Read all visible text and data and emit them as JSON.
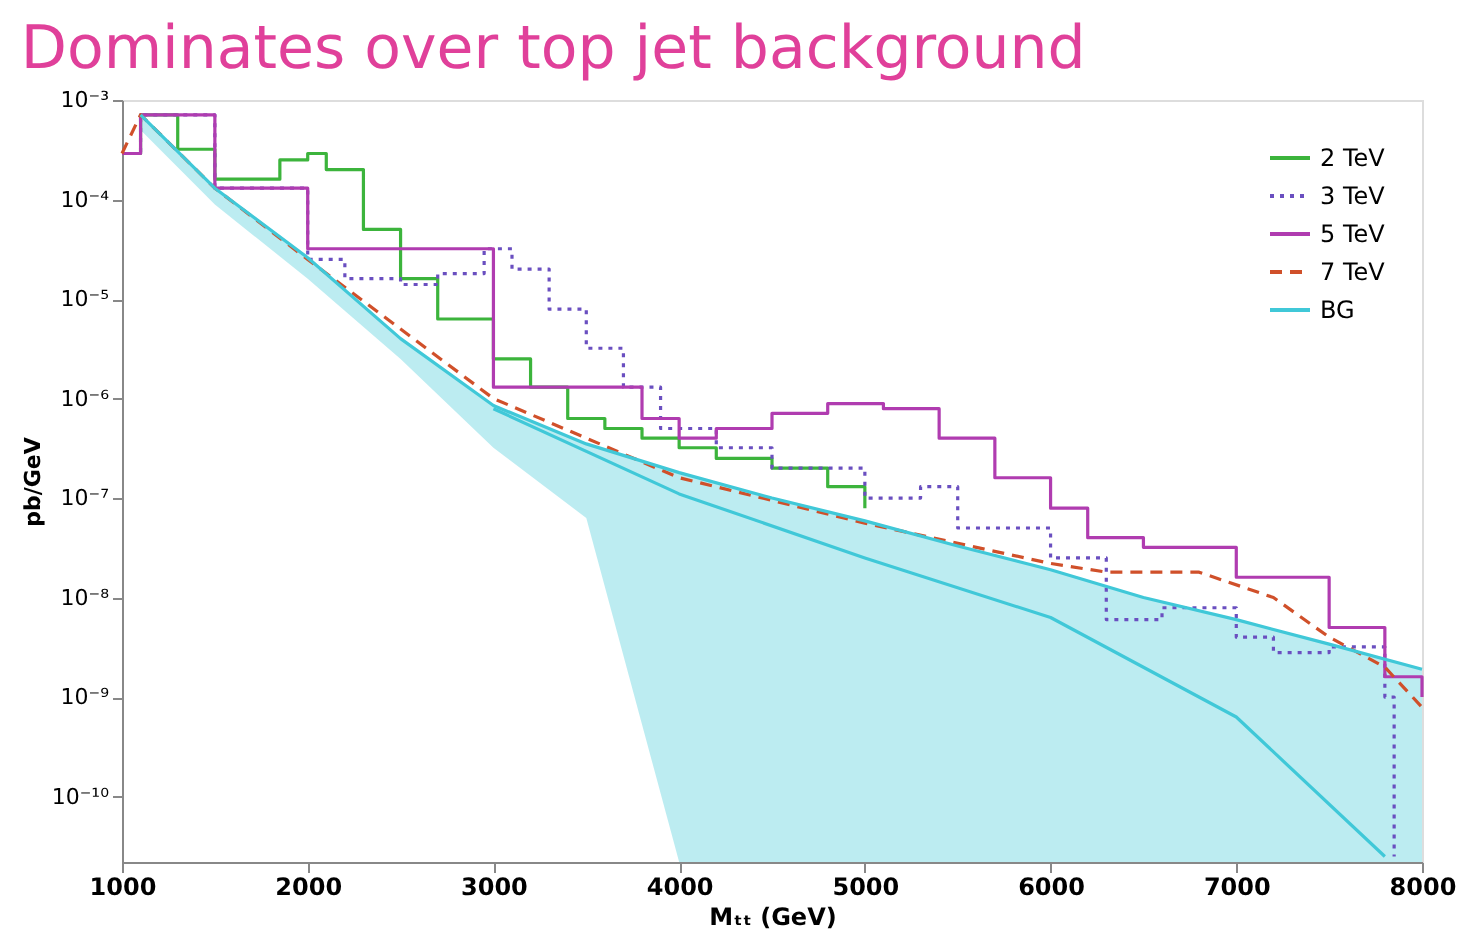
{
  "chart_data": {
    "type": "line",
    "title": "Dominates over top jet background",
    "xlabel": "Mₜₜ (GeV)",
    "ylabel": "pb/GeV",
    "log": "y",
    "grid": false,
    "legend": "top right",
    "marker": "none",
    "xlim": [
      1000,
      8000
    ],
    "xticks": [
      1000,
      2000,
      3000,
      4000,
      5000,
      6000,
      7000,
      8000
    ],
    "ylim": [
      2.2e-11,
      0.001
    ],
    "yticks": [
      {
        "value": 0.001,
        "label": "10⁻³"
      },
      {
        "value": 0.0001,
        "label": "10⁻⁴"
      },
      {
        "value": 1e-05,
        "label": "10⁻⁵"
      },
      {
        "value": 1e-06,
        "label": "10⁻⁶"
      },
      {
        "value": 1e-07,
        "label": "10⁻⁷"
      },
      {
        "value": 1e-08,
        "label": "10⁻⁸"
      },
      {
        "value": 1e-09,
        "label": "10⁻⁹"
      },
      {
        "value": 1e-10,
        "label": "10⁻¹⁰"
      }
    ],
    "series": [
      {
        "name": "2 TeV",
        "type": "step",
        "color": "#3cb43c",
        "line_style": "solid",
        "x": [
          1000,
          1100,
          1300,
          1500,
          1700,
          1850,
          2000,
          2100,
          2300,
          2500,
          2700,
          3000,
          3200,
          3400,
          3600,
          3800,
          4000,
          4200,
          4500,
          4800,
          5000
        ],
        "values": [
          0.00029,
          0.00071,
          0.00032,
          0.00016,
          0.00016,
          0.00025,
          0.00029,
          0.0002,
          5e-05,
          1.6e-05,
          6.3e-06,
          2.5e-06,
          1.3e-06,
          6.3e-07,
          5e-07,
          4e-07,
          3.2e-07,
          2.5e-07,
          2e-07,
          1.3e-07,
          7.9e-08
        ]
      },
      {
        "name": "3 TeV",
        "type": "step",
        "color": "#6a4fc0",
        "line_style": "dotted",
        "x": [
          1000,
          1100,
          1500,
          2000,
          2200,
          2500,
          2700,
          2950,
          3100,
          3300,
          3500,
          3700,
          3900,
          4200,
          4500,
          5000,
          5300,
          5500,
          6000,
          6300,
          6600,
          7000,
          7200,
          7500,
          7800,
          7850
        ],
        "values": [
          0.00029,
          0.00071,
          0.00013,
          2.5e-05,
          1.6e-05,
          1.4e-05,
          1.8e-05,
          3.2e-05,
          2e-05,
          7.9e-06,
          3.2e-06,
          1.3e-06,
          5e-07,
          3.2e-07,
          2e-07,
          1e-07,
          1.3e-07,
          5e-08,
          2.5e-08,
          6e-09,
          7.9e-09,
          4e-09,
          2.8e-09,
          3.2e-09,
          1e-09,
          2.5e-11
        ]
      },
      {
        "name": "5 TeV",
        "type": "step",
        "color": "#b03cb0",
        "line_style": "solid",
        "x": [
          1000,
          1100,
          1500,
          2000,
          3000,
          3800,
          4000,
          4200,
          4500,
          4800,
          5100,
          5400,
          5700,
          6000,
          6200,
          6500,
          7000,
          7500,
          7800,
          8000
        ],
        "values": [
          0.00029,
          0.00071,
          0.00013,
          3.2e-05,
          1.3e-06,
          6.3e-07,
          4e-07,
          5e-07,
          7.1e-07,
          8.9e-07,
          7.9e-07,
          4e-07,
          1.6e-07,
          7.9e-08,
          4e-08,
          3.2e-08,
          1.6e-08,
          5e-09,
          1.6e-09,
          1e-09
        ]
      },
      {
        "name": "7 TeV",
        "type": "line",
        "color": "#d0502a",
        "line_style": "dashed",
        "x": [
          1000,
          1100,
          1500,
          2000,
          3000,
          4000,
          5000,
          6000,
          6300,
          6800,
          7200,
          7500,
          7800,
          8000
        ],
        "values": [
          0.00029,
          0.00071,
          0.00013,
          2.5e-05,
          1e-06,
          1.6e-07,
          5.6e-08,
          2.2e-08,
          1.8e-08,
          1.8e-08,
          1e-08,
          4e-09,
          2e-09,
          7.9e-10
        ]
      },
      {
        "name": "BG",
        "type": "line",
        "color": "#40c8d8",
        "line_style": "solid",
        "x": [
          1100,
          1500,
          2000,
          2500,
          3000,
          3500,
          4000,
          4500,
          5000,
          5500,
          6000,
          6500,
          7000,
          7500,
          8000
        ],
        "values": [
          0.00071,
          0.00013,
          2.6e-05,
          4e-06,
          8.5e-07,
          3.5e-07,
          1.8e-07,
          1e-07,
          5.9e-08,
          3.3e-08,
          1.9e-08,
          1e-08,
          6e-09,
          3.4e-09,
          1.9e-09
        ],
        "lower": [
          0.0005,
          8.9e-05,
          1.6e-05,
          2.5e-06,
          3.2e-07,
          6.3e-08,
          2.2e-11,
          2.2e-11,
          2.2e-11,
          2.2e-11,
          2.2e-11,
          2.2e-11,
          2.2e-11,
          2.2e-11,
          2.2e-11
        ],
        "upper": [
          0.00071,
          0.00013,
          2.6e-05,
          4e-06,
          8.5e-07,
          3.5e-07,
          1.8e-07,
          1e-07,
          5.9e-08,
          3.3e-08,
          1.9e-08,
          1e-08,
          6e-09,
          3.4e-09,
          1.9e-09
        ]
      },
      {
        "type": "line",
        "color": "#40c8d8",
        "line_style": "solid",
        "x": [
          3000,
          4000,
          5000,
          6000,
          7000,
          7800
        ],
        "values": [
          7.9e-07,
          1.1e-07,
          2.5e-08,
          6.3e-09,
          6.3e-10,
          2.5e-11
        ]
      }
    ]
  }
}
